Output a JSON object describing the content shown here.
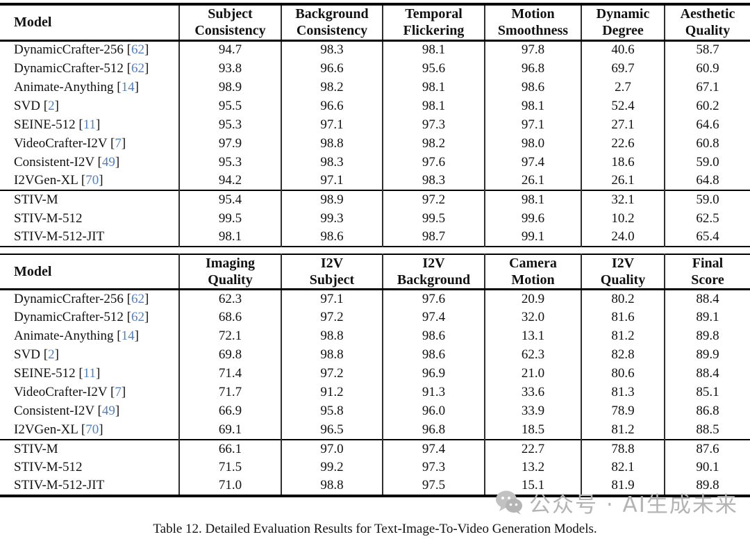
{
  "colors": {
    "citation_blue": "#4f7fc2",
    "watermark_gray": "#b4b4b4",
    "rule_black": "#000000"
  },
  "caption": "Table 12. Detailed Evaluation Results for Text-Image-To-Video Generation Models.",
  "watermark": {
    "icon": "wechat-icon",
    "text": "公众号 · AI生成未来"
  },
  "tables": [
    {
      "id": "evaluation-table-top",
      "headers": [
        {
          "label": "Model"
        },
        {
          "lines": [
            "Subject",
            "Consistency"
          ]
        },
        {
          "lines": [
            "Background",
            "Consistency"
          ]
        },
        {
          "lines": [
            "Temporal",
            "Flickering"
          ]
        },
        {
          "lines": [
            "Motion",
            "Smoothness"
          ]
        },
        {
          "lines": [
            "Dynamic",
            "Degree"
          ]
        },
        {
          "lines": [
            "Aesthetic",
            "Quality"
          ]
        }
      ],
      "groups": [
        [
          {
            "model": "DynamicCrafter-256",
            "cite": "62",
            "values": [
              "94.7",
              "98.3",
              "98.1",
              "97.8",
              "40.6",
              "58.7"
            ]
          },
          {
            "model": "DynamicCrafter-512",
            "cite": "62",
            "values": [
              "93.8",
              "96.6",
              "95.6",
              "96.8",
              "69.7",
              "60.9"
            ]
          },
          {
            "model": "Animate-Anything",
            "cite": "14",
            "values": [
              "98.9",
              "98.2",
              "98.1",
              "98.6",
              "2.7",
              "67.1"
            ]
          },
          {
            "model": "SVD",
            "cite": "2",
            "values": [
              "95.5",
              "96.6",
              "98.1",
              "98.1",
              "52.4",
              "60.2"
            ]
          },
          {
            "model": "SEINE-512",
            "cite": "11",
            "values": [
              "95.3",
              "97.1",
              "97.3",
              "97.1",
              "27.1",
              "64.6"
            ]
          },
          {
            "model": "VideoCrafter-I2V",
            "cite": "7",
            "values": [
              "97.9",
              "98.8",
              "98.2",
              "98.0",
              "22.6",
              "60.8"
            ]
          },
          {
            "model": "Consistent-I2V",
            "cite": "49",
            "values": [
              "95.3",
              "98.3",
              "97.6",
              "97.4",
              "18.6",
              "59.0"
            ]
          },
          {
            "model": "I2VGen-XL",
            "cite": "70",
            "values": [
              "94.2",
              "97.1",
              "98.3",
              "26.1",
              "26.1",
              "64.8"
            ]
          }
        ],
        [
          {
            "model": "STIV-M",
            "cite": null,
            "values": [
              "95.4",
              "98.9",
              "97.2",
              "98.1",
              "32.1",
              "59.0"
            ]
          },
          {
            "model": "STIV-M-512",
            "cite": null,
            "values": [
              "99.5",
              "99.3",
              "99.5",
              "99.6",
              "10.2",
              "62.5"
            ]
          },
          {
            "model": "STIV-M-512-JIT",
            "cite": null,
            "values": [
              "98.1",
              "98.6",
              "98.7",
              "99.1",
              "24.0",
              "65.4"
            ]
          }
        ]
      ]
    },
    {
      "id": "evaluation-table-bottom",
      "headers": [
        {
          "label": "Model"
        },
        {
          "lines": [
            "Imaging",
            "Quality"
          ]
        },
        {
          "lines": [
            "I2V",
            "Subject"
          ]
        },
        {
          "lines": [
            "I2V",
            "Background"
          ]
        },
        {
          "lines": [
            "Camera",
            "Motion"
          ]
        },
        {
          "lines": [
            "I2V",
            "Quality"
          ]
        },
        {
          "lines": [
            "Final",
            "Score"
          ]
        }
      ],
      "groups": [
        [
          {
            "model": "DynamicCrafter-256",
            "cite": "62",
            "values": [
              "62.3",
              "97.1",
              "97.6",
              "20.9",
              "80.2",
              "88.4"
            ]
          },
          {
            "model": "DynamicCrafter-512",
            "cite": "62",
            "values": [
              "68.6",
              "97.2",
              "97.4",
              "32.0",
              "81.6",
              "89.1"
            ]
          },
          {
            "model": "Animate-Anything",
            "cite": "14",
            "values": [
              "72.1",
              "98.8",
              "98.6",
              "13.1",
              "81.2",
              "89.8"
            ]
          },
          {
            "model": "SVD",
            "cite": "2",
            "values": [
              "69.8",
              "98.8",
              "98.6",
              "62.3",
              "82.8",
              "89.9"
            ]
          },
          {
            "model": "SEINE-512",
            "cite": "11",
            "values": [
              "71.4",
              "97.2",
              "96.9",
              "21.0",
              "80.6",
              "88.4"
            ]
          },
          {
            "model": "VideoCrafter-I2V",
            "cite": "7",
            "values": [
              "71.7",
              "91.2",
              "91.3",
              "33.6",
              "81.3",
              "85.1"
            ]
          },
          {
            "model": "Consistent-I2V",
            "cite": "49",
            "values": [
              "66.9",
              "95.8",
              "96.0",
              "33.9",
              "78.9",
              "86.8"
            ]
          },
          {
            "model": "I2VGen-XL",
            "cite": "70",
            "values": [
              "69.1",
              "96.5",
              "96.8",
              "18.5",
              "81.2",
              "88.5"
            ]
          }
        ],
        [
          {
            "model": "STIV-M",
            "cite": null,
            "values": [
              "66.1",
              "97.0",
              "97.4",
              "22.7",
              "78.8",
              "87.6"
            ]
          },
          {
            "model": "STIV-M-512",
            "cite": null,
            "values": [
              "71.5",
              "99.2",
              "97.3",
              "13.2",
              "82.1",
              "90.1"
            ]
          },
          {
            "model": "STIV-M-512-JIT",
            "cite": null,
            "values": [
              "71.0",
              "98.8",
              "97.5",
              "15.1",
              "81.9",
              "89.8"
            ]
          }
        ]
      ]
    }
  ]
}
